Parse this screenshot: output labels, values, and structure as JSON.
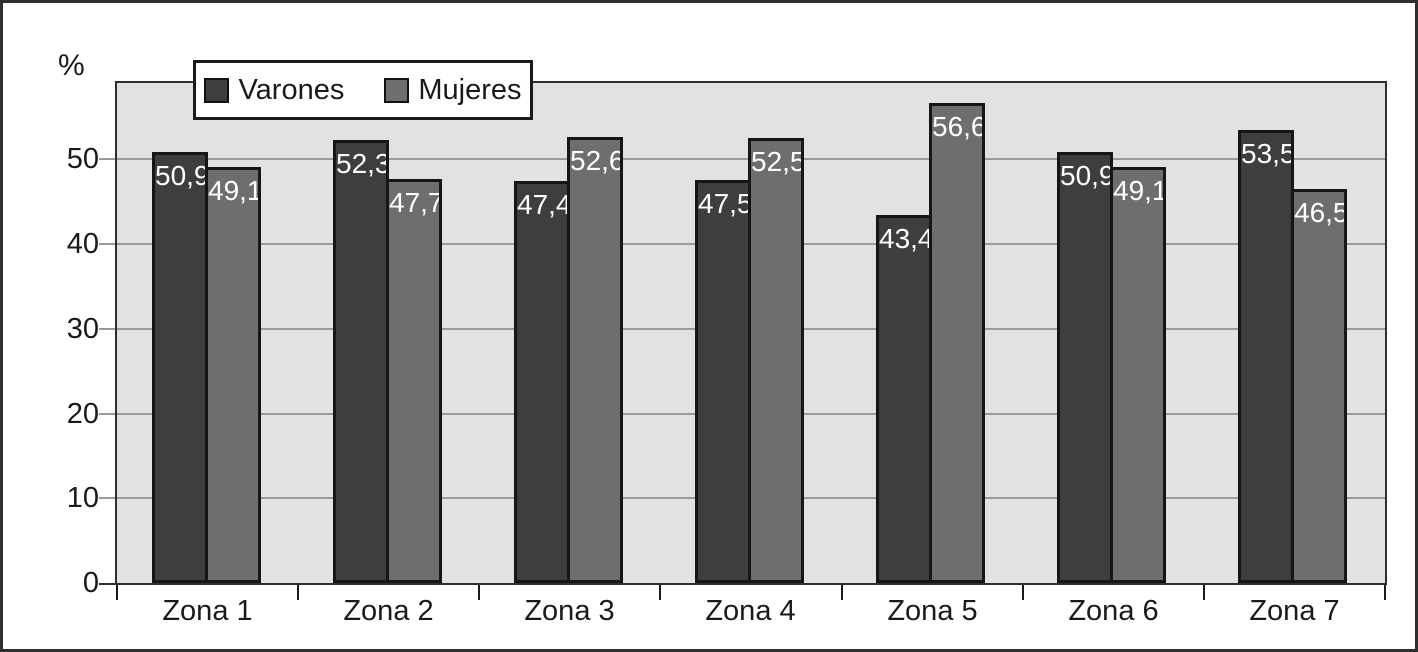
{
  "chart_data": {
    "type": "bar",
    "title": "",
    "ylabel": "%",
    "categories": [
      "Zona 1",
      "Zona 2",
      "Zona 3",
      "Zona 4",
      "Zona 5",
      "Zona 6",
      "Zona 7"
    ],
    "series": [
      {
        "name": "Varones",
        "color": "#3e3e3e",
        "values": [
          50.9,
          52.3,
          47.4,
          47.5,
          43.4,
          50.9,
          53.5
        ],
        "labels": [
          "50,9",
          "52,3",
          "47,4",
          "47,5",
          "43,4",
          "50,9",
          "53,5"
        ]
      },
      {
        "name": "Mujeres",
        "color": "#6e6e6e",
        "values": [
          49.1,
          47.7,
          52.6,
          52.5,
          56.6,
          49.1,
          46.5
        ],
        "labels": [
          "49,1",
          "47,7",
          "52,6",
          "52,5",
          "56,6",
          "49,1",
          "46,5"
        ]
      }
    ],
    "yticks": [
      0,
      10,
      20,
      30,
      40,
      50
    ],
    "ylim": [
      0,
      59
    ],
    "grid": true,
    "legend_position": "top-left-inside",
    "colors": {
      "plot_bg": "#e2e2e2",
      "gridline": "#9a9a9a",
      "bar_border": "#161616",
      "value_label": "#ffffff",
      "axis_text": "#1a1a1a"
    }
  }
}
